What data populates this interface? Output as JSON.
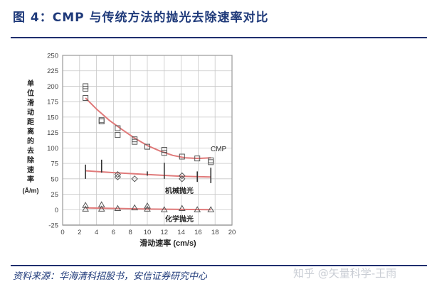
{
  "header": {
    "title": "图 4：CMP 与传统方法的抛光去除速率对比"
  },
  "footer": {
    "source": "资料来源：华海清科招股书，安信证券研究中心",
    "watermark": "知乎 @矢量科学-王雨"
  },
  "colors": {
    "title": "#1f3a7a",
    "rule": "#1f2e6e",
    "fit_line": "#e07a7a",
    "grid": "#c8c8c8"
  },
  "chart_data": {
    "type": "scatter",
    "title": "CMP 与传统方法的抛光去除速率对比",
    "xlabel": "滑动速率 (cm/s)",
    "ylabel": "单位滑动距离的去除速率 (Å/m)",
    "xlim": [
      0,
      20
    ],
    "ylim": [
      -25,
      250
    ],
    "x_ticks": [
      "0",
      "2",
      "4",
      "6",
      "8",
      "10",
      "12",
      "14",
      "16",
      "18",
      "20"
    ],
    "y_ticks": [
      "250",
      "225",
      "200",
      "175",
      "150",
      "125",
      "100",
      "75",
      "50",
      "25",
      "0",
      "-25"
    ],
    "grid": true,
    "series": [
      {
        "name": "CMP",
        "marker": "square",
        "points": [
          [
            2.7,
            200
          ],
          [
            2.7,
            196
          ],
          [
            2.7,
            181
          ],
          [
            4.6,
            145
          ],
          [
            4.6,
            143
          ],
          [
            6.5,
            132
          ],
          [
            6.5,
            121
          ],
          [
            8.5,
            114
          ],
          [
            8.5,
            110
          ],
          [
            10,
            102
          ],
          [
            12,
            97
          ],
          [
            12,
            92
          ],
          [
            14.1,
            86
          ],
          [
            15.9,
            83
          ],
          [
            17.5,
            80
          ],
          [
            17.5,
            77
          ]
        ],
        "fit": [
          [
            2.7,
            181
          ],
          [
            4,
            163
          ],
          [
            5.5,
            145
          ],
          [
            7,
            130
          ],
          [
            8.5,
            116
          ],
          [
            10,
            104
          ],
          [
            11.5,
            95
          ],
          [
            13,
            88
          ],
          [
            14.5,
            84
          ],
          [
            16,
            83
          ],
          [
            17.5,
            84
          ]
        ],
        "label": "CMP"
      },
      {
        "name": "机械抛光",
        "marker": "diamond/circle + error bars",
        "points": [
          [
            6.5,
            57
          ],
          [
            6.5,
            53
          ],
          [
            8.5,
            50
          ],
          [
            14.1,
            55
          ],
          [
            14.1,
            50
          ]
        ],
        "error_bars": [
          [
            2.7,
            50,
            73
          ],
          [
            4.6,
            60,
            81
          ],
          [
            10,
            55,
            62
          ],
          [
            12,
            50,
            76
          ],
          [
            15.9,
            45,
            62
          ],
          [
            17.5,
            43,
            68
          ]
        ],
        "fit": [
          [
            2.7,
            63
          ],
          [
            6,
            60
          ],
          [
            10,
            57
          ],
          [
            14,
            54
          ],
          [
            17.5,
            53
          ]
        ],
        "label": "机械抛光"
      },
      {
        "name": "化学抛光",
        "marker": "triangle",
        "points": [
          [
            2.7,
            7
          ],
          [
            2.7,
            1
          ],
          [
            4.6,
            8
          ],
          [
            4.6,
            1
          ],
          [
            6.5,
            2
          ],
          [
            8.5,
            3
          ],
          [
            10,
            6
          ],
          [
            10,
            1
          ],
          [
            12,
            0
          ],
          [
            14.1,
            2
          ],
          [
            15.9,
            0
          ],
          [
            17.5,
            0
          ]
        ],
        "fit": [
          [
            2.7,
            3
          ],
          [
            10,
            1
          ],
          [
            17.5,
            0
          ]
        ],
        "label": "化学抛光"
      }
    ]
  }
}
